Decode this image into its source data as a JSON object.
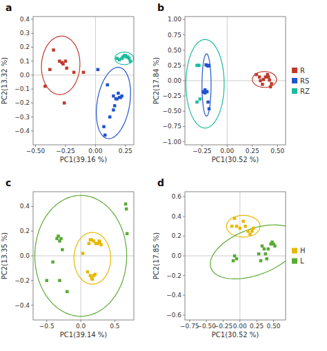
{
  "chart_data": [
    {
      "type": "scatter",
      "title": "a",
      "xlabel": "PC1(39.16 %)",
      "ylabel": "PC2(13.32 %)",
      "xlim": [
        -0.52,
        0.32
      ],
      "ylim": [
        -0.5,
        0.42
      ],
      "xticks": [
        {
          "value": -0.5,
          "label": "−0.50"
        },
        {
          "value": -0.25,
          "label": "−0.25"
        },
        {
          "value": 0,
          "label": "0.00"
        },
        {
          "value": 0.25,
          "label": "0.25"
        }
      ],
      "yticks": [
        {
          "value": -0.4,
          "label": "−0.4"
        },
        {
          "value": -0.3,
          "label": "−0.3"
        },
        {
          "value": -0.2,
          "label": "−0.2"
        },
        {
          "value": -0.1,
          "label": "−0.1"
        },
        {
          "value": 0,
          "label": "0.0"
        },
        {
          "value": 0.1,
          "label": "0.1"
        },
        {
          "value": 0.2,
          "label": "0.2"
        },
        {
          "value": 0.3,
          "label": "0.3"
        },
        {
          "value": 0.4,
          "label": "0.4"
        }
      ],
      "series": [
        {
          "color": "#c0392b",
          "marker": "square",
          "x": [
            -0.38,
            -0.35,
            -0.3,
            -0.28,
            -0.27,
            -0.25,
            -0.24,
            -0.18,
            -0.42,
            -0.26,
            -0.1
          ],
          "values": [
            0.04,
            0.18,
            0.1,
            0.09,
            0.08,
            0.1,
            0.05,
            0.02,
            -0.08,
            -0.2,
            0.02
          ],
          "ellipse": {
            "cx": -0.29,
            "cy": 0.07,
            "width": 0.32,
            "height": 0.42,
            "angle": -5
          }
        },
        {
          "color": "#2255cc",
          "marker": "square",
          "x": [
            0.02,
            0.1,
            0.15,
            0.17,
            0.18,
            0.2,
            0.21,
            0.22,
            0.19,
            0.12,
            0.07,
            0.08,
            0.15,
            0.16
          ],
          "values": [
            0.04,
            -0.07,
            -0.15,
            -0.17,
            -0.17,
            -0.16,
            -0.16,
            -0.15,
            -0.13,
            -0.3,
            -0.37,
            -0.43,
            -0.25,
            -0.22
          ],
          "ellipse": {
            "cx": 0.15,
            "cy": -0.2,
            "width": 0.27,
            "height": 0.52,
            "angle": -12
          }
        },
        {
          "color": "#1abc9c",
          "marker": "square",
          "x": [
            0.18,
            0.2,
            0.22,
            0.23,
            0.24,
            0.25,
            0.26,
            0.27,
            0.28,
            0.29
          ],
          "values": [
            0.12,
            0.11,
            0.12,
            0.13,
            0.14,
            0.14,
            0.13,
            0.13,
            0.12,
            0.1
          ],
          "ellipse": {
            "cx": 0.24,
            "cy": 0.12,
            "width": 0.155,
            "height": 0.09,
            "angle": 0
          }
        }
      ]
    },
    {
      "type": "scatter",
      "title": "b",
      "xlabel": "PC1(30.52 %)",
      "ylabel": "PC2(17.84 %)",
      "xlim": [
        -0.42,
        0.58
      ],
      "ylim": [
        -1.05,
        1.05
      ],
      "xticks": [
        {
          "value": -0.25,
          "label": "−0.25"
        },
        {
          "value": 0,
          "label": "0.00"
        },
        {
          "value": 0.25,
          "label": "0.25"
        },
        {
          "value": 0.5,
          "label": "0.50"
        }
      ],
      "yticks": [
        {
          "value": -1,
          "label": "−1.00"
        },
        {
          "value": -0.75,
          "label": "−0.75"
        },
        {
          "value": -0.5,
          "label": "−0.50"
        },
        {
          "value": -0.25,
          "label": "−0.25"
        },
        {
          "value": 0,
          "label": "0.00"
        },
        {
          "value": 0.25,
          "label": "0.25"
        },
        {
          "value": 0.5,
          "label": "0.50"
        },
        {
          "value": 0.75,
          "label": "0.75"
        },
        {
          "value": 1,
          "label": "1.00"
        }
      ],
      "legend": "right",
      "series": [
        {
          "name": "R",
          "color": "#c0392b",
          "marker": "square",
          "x": [
            0.29,
            0.32,
            0.33,
            0.35,
            0.36,
            0.38,
            0.4,
            0.41,
            0.42,
            0.43,
            0.44
          ],
          "values": [
            0.1,
            0.06,
            0.0,
            -0.06,
            0.02,
            0.06,
            0.1,
            0.06,
            0.01,
            -0.1,
            -0.05
          ],
          "ellipse": {
            "cx": 0.37,
            "cy": 0.02,
            "width": 0.24,
            "height": 0.26,
            "angle": 0
          }
        },
        {
          "name": "RS",
          "color": "#2255cc",
          "marker": "square",
          "x": [
            -0.18,
            -0.19,
            -0.2,
            -0.21,
            -0.2,
            -0.21,
            -0.22,
            -0.23,
            -0.24,
            -0.22,
            -0.19,
            -0.18
          ],
          "values": [
            0.25,
            0.24,
            0.25,
            0.26,
            -0.18,
            -0.18,
            -0.2,
            -0.19,
            -0.18,
            -0.15,
            -0.35,
            -0.46
          ],
          "ellipse": {
            "cx": -0.205,
            "cy": -0.07,
            "width": 0.09,
            "height": 1.02,
            "angle": 0
          }
        },
        {
          "name": "RZ",
          "color": "#1abc9c",
          "marker": "square",
          "x": [
            -0.28,
            -0.29,
            -0.3,
            -0.27,
            -0.3
          ],
          "values": [
            0.25,
            0.25,
            0.25,
            -0.3,
            -0.35
          ],
          "ellipse": {
            "cx": -0.22,
            "cy": -0.05,
            "width": 0.38,
            "height": 1.45,
            "angle": 0
          }
        }
      ]
    },
    {
      "type": "scatter",
      "title": "c",
      "xlabel": "PC1(39.14 %)",
      "ylabel": "PC2(13.35 %)",
      "xlim": [
        -0.7,
        0.78
      ],
      "ylim": [
        -0.52,
        0.52
      ],
      "xticks": [
        {
          "value": -0.5,
          "label": "−0.5"
        },
        {
          "value": 0,
          "label": "0.0"
        },
        {
          "value": 0.5,
          "label": "0.5"
        }
      ],
      "yticks": [
        {
          "value": -0.4,
          "label": "−0.4"
        },
        {
          "value": -0.2,
          "label": "−0.2"
        },
        {
          "value": 0,
          "label": "0.0"
        },
        {
          "value": 0.2,
          "label": "0.2"
        },
        {
          "value": 0.4,
          "label": "0.4"
        }
      ],
      "series": [
        {
          "color": "#e6b800",
          "marker": "square",
          "x": [
            0.12,
            0.14,
            0.16,
            0.19,
            0.22,
            0.25,
            0.27,
            0.28,
            0.3,
            0.1,
            0.14,
            0.16,
            0.17,
            0.19,
            0.21,
            0.03
          ],
          "values": [
            0.1,
            0.13,
            0.13,
            0.12,
            0.1,
            0.1,
            0.12,
            0.11,
            0.09,
            -0.13,
            -0.16,
            -0.18,
            -0.19,
            -0.16,
            -0.15,
            0.02
          ],
          "ellipse": {
            "cx": 0.17,
            "cy": -0.02,
            "width": 0.54,
            "height": 0.42,
            "angle": 0
          }
        },
        {
          "color": "#5aaa35",
          "marker": "square",
          "x": [
            -0.35,
            -0.33,
            -0.31,
            -0.29,
            -0.27,
            -0.31,
            -0.5,
            -0.2,
            0.66,
            0.67,
            0.68,
            -0.41
          ],
          "values": [
            0.14,
            0.16,
            0.12,
            0.14,
            0.05,
            -0.2,
            -0.2,
            -0.29,
            0.42,
            0.38,
            0.18,
            -0.05
          ],
          "ellipse": {
            "cx": 0.0,
            "cy": 0.0,
            "width": 1.35,
            "height": 0.98,
            "angle": 0
          }
        }
      ]
    },
    {
      "type": "scatter",
      "title": "d",
      "xlabel": "PC1(30.52 %)",
      "ylabel": "PC2(17.85 %)",
      "xlim": [
        -0.82,
        0.68
      ],
      "ylim": [
        -0.65,
        0.65
      ],
      "xticks": [
        {
          "value": -0.75,
          "label": "−0.75"
        },
        {
          "value": -0.5,
          "label": "−0.50"
        },
        {
          "value": -0.25,
          "label": "−0.25"
        },
        {
          "value": 0,
          "label": "0.00"
        },
        {
          "value": 0.25,
          "label": "0.25"
        },
        {
          "value": 0.5,
          "label": "0.50"
        }
      ],
      "yticks": [
        {
          "value": -0.6,
          "label": "−0.6"
        },
        {
          "value": -0.4,
          "label": "−0.4"
        },
        {
          "value": -0.2,
          "label": "−0.2"
        },
        {
          "value": 0,
          "label": "0.0"
        },
        {
          "value": 0.2,
          "label": "0.2"
        },
        {
          "value": 0.4,
          "label": "0.4"
        },
        {
          "value": 0.6,
          "label": "0.6"
        }
      ],
      "legend": "right",
      "series": [
        {
          "name": "H",
          "color": "#e6b800",
          "marker": "square",
          "x": [
            -0.08,
            -0.05,
            0.0,
            0.05,
            0.08,
            0.12,
            0.15,
            0.18,
            0.2,
            -0.12
          ],
          "values": [
            0.38,
            0.3,
            0.28,
            0.35,
            0.3,
            0.25,
            0.22,
            0.25,
            0.28,
            0.3
          ],
          "ellipse": {
            "cx": 0.05,
            "cy": 0.3,
            "width": 0.5,
            "height": 0.22,
            "angle": 0
          }
        },
        {
          "name": "L",
          "color": "#5aaa35",
          "marker": "square",
          "x": [
            -0.05,
            -0.08,
            -0.1,
            0.28,
            0.31,
            0.33,
            0.36,
            0.38,
            0.4,
            0.42,
            0.46,
            0.48,
            0.5,
            0.52
          ],
          "values": [
            -0.03,
            0.0,
            -0.05,
            0.02,
            -0.05,
            0.1,
            0.07,
            0.02,
            -0.03,
            0.07,
            0.12,
            0.14,
            0.12,
            0.1
          ],
          "ellipse": {
            "cx": 0.22,
            "cy": 0.04,
            "width": 1.35,
            "height": 0.48,
            "angle": 12
          }
        }
      ]
    }
  ]
}
